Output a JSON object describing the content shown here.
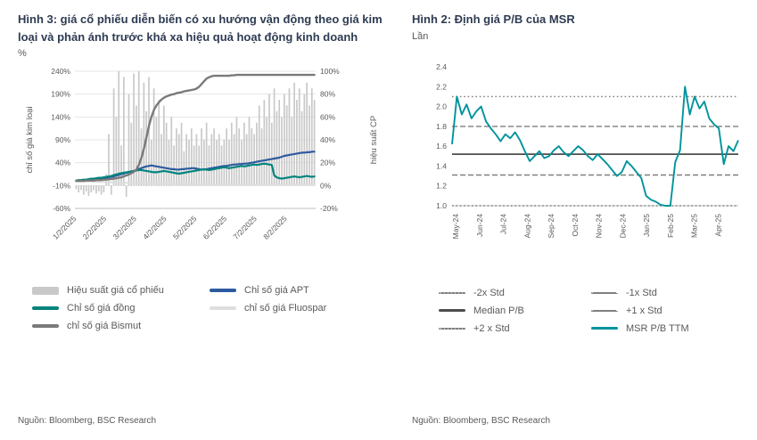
{
  "colors": {
    "title_text": "#2e3b52",
    "axis_text": "#595959",
    "grid": "#e4e4e4",
    "bars_gray": "#c9c9c9",
    "apt_blue": "#2e5b9f",
    "copper_teal": "#00847c",
    "fluospar_light": "#dedede",
    "bismut_gray": "#7a7a7a",
    "msr_teal": "#00939c",
    "std_gray": "#7f7f7f",
    "median_dark": "#4d4d4d"
  },
  "left_panel": {
    "title": "Hình 3: giá cổ phiếu diễn biến có xu hướng vận động theo giá kim loại và phản ánh trước khá xa hiệu quả hoạt động kinh doanh",
    "unit": "%",
    "source": "Nguồn: Bloomberg, BSC Research"
  },
  "right_panel": {
    "title": "Hình 2: Định giá P/B của MSR",
    "unit": "Lần",
    "source": "Nguồn: Bloomberg, BSC Research"
  },
  "chart_data": [
    {
      "type": "bar",
      "title": "Hình 3: giá cổ phiếu diễn biến có xu hướng vận động theo giá kim loại và phản ánh trước khá xa hiệu quả hoạt động kinh doanh",
      "ylabel_left": "chỉ số giá kim loại",
      "ylabel_right": "hiệu suất CP",
      "x_labels": [
        "1/2/2025",
        "2/2/2025",
        "3/2/2025",
        "4/2/2025",
        "5/2/2025",
        "6/2/2025",
        "7/2/2025",
        "8/2/2025"
      ],
      "ylim_left": [
        -60,
        240
      ],
      "yticks_left": [
        "240%",
        "190%",
        "140%",
        "90%",
        "40%",
        "-10%",
        "-60%"
      ],
      "ylim_right": [
        -20,
        100
      ],
      "yticks_right": [
        "100%",
        "80%",
        "60%",
        "40%",
        "20%",
        "0%",
        "-20%"
      ],
      "grid": true,
      "legend_position": "bottom",
      "bars": {
        "name": "Hiệu suất giá cổ phiếu",
        "axis": "right",
        "color": "#c9c9c9",
        "values": [
          -3,
          -6,
          -4,
          -8,
          -5,
          -9,
          -6,
          -4,
          -7,
          -5,
          -8,
          -6,
          10,
          45,
          -8,
          85,
          60,
          100,
          35,
          95,
          -10,
          80,
          55,
          98,
          70,
          100,
          50,
          90,
          65,
          95,
          40,
          85,
          60,
          75,
          45,
          70,
          55,
          40,
          60,
          35,
          50,
          45,
          55,
          30,
          45,
          40,
          50,
          35,
          45,
          35,
          50,
          40,
          55,
          35,
          45,
          50,
          40,
          45,
          35,
          40,
          50,
          40,
          55,
          45,
          60,
          50,
          40,
          55,
          45,
          60,
          50,
          45,
          55,
          70,
          50,
          75,
          60,
          80,
          55,
          85,
          65,
          75,
          60,
          80,
          70,
          85,
          60,
          90,
          75,
          85,
          65,
          80,
          90,
          70,
          85,
          75
        ]
      },
      "series": [
        {
          "name": "Chỉ số giá APT",
          "axis": "left",
          "color": "#2e5b9f",
          "w": 2.2,
          "values": [
            0,
            1,
            1,
            2,
            2,
            3,
            3,
            4,
            4,
            5,
            5,
            6,
            7,
            8,
            9,
            10,
            12,
            13,
            15,
            16,
            18,
            19,
            21,
            22,
            24,
            26,
            28,
            30,
            32,
            33,
            34,
            33,
            32,
            31,
            30,
            29,
            28,
            27,
            26,
            26,
            25,
            25,
            26,
            26,
            27,
            27,
            28,
            28,
            27,
            26,
            25,
            25,
            26,
            27,
            28,
            29,
            30,
            31,
            32,
            33,
            33,
            34,
            35,
            36,
            36,
            37,
            37,
            38,
            38,
            39,
            40,
            41,
            42,
            43,
            44,
            45,
            46,
            47,
            48,
            49,
            50,
            51,
            53,
            55,
            56,
            57,
            58,
            59,
            60,
            61,
            62,
            62,
            63,
            63,
            64,
            64
          ]
        },
        {
          "name": "Chỉ số giá đồng",
          "axis": "left",
          "color": "#00847c",
          "w": 2.2,
          "values": [
            1,
            2,
            2,
            3,
            3,
            4,
            5,
            5,
            6,
            7,
            7,
            8,
            9,
            10,
            11,
            13,
            14,
            16,
            17,
            18,
            19,
            20,
            21,
            22,
            23,
            24,
            24,
            23,
            22,
            21,
            20,
            19,
            19,
            20,
            21,
            22,
            21,
            20,
            19,
            18,
            17,
            16,
            17,
            18,
            19,
            20,
            21,
            22,
            23,
            24,
            25,
            26,
            25,
            24,
            25,
            26,
            27,
            28,
            29,
            30,
            29,
            28,
            29,
            30,
            31,
            32,
            33,
            32,
            33,
            34,
            35,
            36,
            35,
            36,
            37,
            38,
            37,
            36,
            35,
            12,
            8,
            6,
            5,
            6,
            7,
            8,
            9,
            10,
            9,
            8,
            9,
            10,
            11,
            10,
            9,
            10
          ]
        },
        {
          "name": "chỉ số giá Fluospar",
          "axis": "left",
          "color": "#dedede",
          "w": 2,
          "values": [
            0,
            0,
            0,
            -1,
            -1,
            -1,
            -1,
            -2,
            -2,
            -2,
            -2,
            -2,
            -2,
            -3,
            -3,
            -3,
            -3,
            -3,
            -4,
            -4,
            -4,
            -4,
            -4,
            -4,
            -4,
            -4,
            -5,
            -5,
            -5,
            -5,
            -5,
            -5,
            -5,
            -5,
            -6,
            -6,
            -6,
            -6,
            -6,
            -6,
            -6,
            -6,
            -6,
            -6,
            -6,
            -6,
            -6,
            -6,
            -6,
            -6,
            -7,
            -7,
            -7,
            -7,
            -7,
            -7,
            -7,
            -7,
            -7,
            -7,
            -7,
            -7,
            -7,
            -7,
            -7,
            -7,
            -7,
            -7,
            -7,
            -7,
            -7,
            -7,
            -8,
            -8,
            -8,
            -8,
            -8,
            -8,
            -8,
            -8,
            -8,
            -8,
            -8,
            -8,
            -8,
            -8,
            -8,
            -8,
            -8,
            -8,
            -8,
            -8,
            -8,
            -8,
            -8,
            -8
          ]
        },
        {
          "name": "chỉ số giá Bismut",
          "axis": "left",
          "color": "#7a7a7a",
          "w": 2.4,
          "values": [
            0,
            0,
            0,
            0,
            1,
            1,
            1,
            1,
            2,
            2,
            2,
            3,
            3,
            4,
            4,
            5,
            6,
            7,
            8,
            10,
            12,
            14,
            17,
            20,
            25,
            35,
            50,
            70,
            95,
            120,
            140,
            155,
            165,
            172,
            178,
            182,
            185,
            187,
            189,
            190,
            192,
            193,
            194,
            196,
            197,
            198,
            199,
            200,
            202,
            206,
            212,
            218,
            224,
            227,
            229,
            230,
            230,
            230,
            230,
            230,
            230,
            230,
            231,
            231,
            232,
            232,
            232,
            232,
            232,
            232,
            232,
            232,
            232,
            232,
            232,
            232,
            232,
            232,
            232,
            232,
            232,
            232,
            232,
            232,
            232,
            232,
            232,
            232,
            232,
            232,
            232,
            232,
            232,
            232,
            232,
            232
          ]
        }
      ]
    },
    {
      "type": "line",
      "title": "Hình 2: Định giá P/B của MSR",
      "unit": "Lần",
      "x_labels": [
        "May-24",
        "Jun-24",
        "Jul-24",
        "Aug-24",
        "Sep-24",
        "Oct-24",
        "Nov-24",
        "Dec-24",
        "Jan-25",
        "Feb-25",
        "Mar-25",
        "Apr-25"
      ],
      "ylim": [
        1.0,
        2.4
      ],
      "yticks": [
        2.4,
        2.2,
        2.0,
        1.8,
        1.6,
        1.4,
        1.2,
        1.0
      ],
      "grid": false,
      "legend_position": "bottom",
      "std_lines": [
        {
          "name": "-2x Std",
          "value": 1.0,
          "style": "dotted",
          "color": "#7f7f7f"
        },
        {
          "name": "-1x Std",
          "value": 1.31,
          "style": "dashed",
          "color": "#7f7f7f"
        },
        {
          "name": "Median P/B",
          "value": 1.52,
          "style": "solid",
          "color": "#4d4d4d"
        },
        {
          "name": "+1 x Std",
          "value": 1.8,
          "style": "dashed",
          "color": "#7f7f7f"
        },
        {
          "name": "+2 x Std",
          "value": 2.1,
          "style": "dotted",
          "color": "#7f7f7f"
        }
      ],
      "series": {
        "name": "MSR P/B TTM",
        "color": "#00939c",
        "values": [
          1.62,
          2.1,
          1.92,
          2.02,
          1.88,
          1.95,
          2.0,
          1.85,
          1.78,
          1.72,
          1.65,
          1.72,
          1.68,
          1.74,
          1.66,
          1.55,
          1.45,
          1.5,
          1.55,
          1.48,
          1.5,
          1.56,
          1.6,
          1.54,
          1.5,
          1.55,
          1.6,
          1.56,
          1.5,
          1.46,
          1.52,
          1.47,
          1.42,
          1.36,
          1.3,
          1.34,
          1.45,
          1.4,
          1.34,
          1.28,
          1.1,
          1.06,
          1.04,
          1.01,
          1.0,
          1.0,
          1.44,
          1.56,
          2.2,
          1.92,
          2.1,
          1.98,
          2.05,
          1.88,
          1.82,
          1.78,
          1.42,
          1.6,
          1.55,
          1.66
        ]
      }
    }
  ]
}
